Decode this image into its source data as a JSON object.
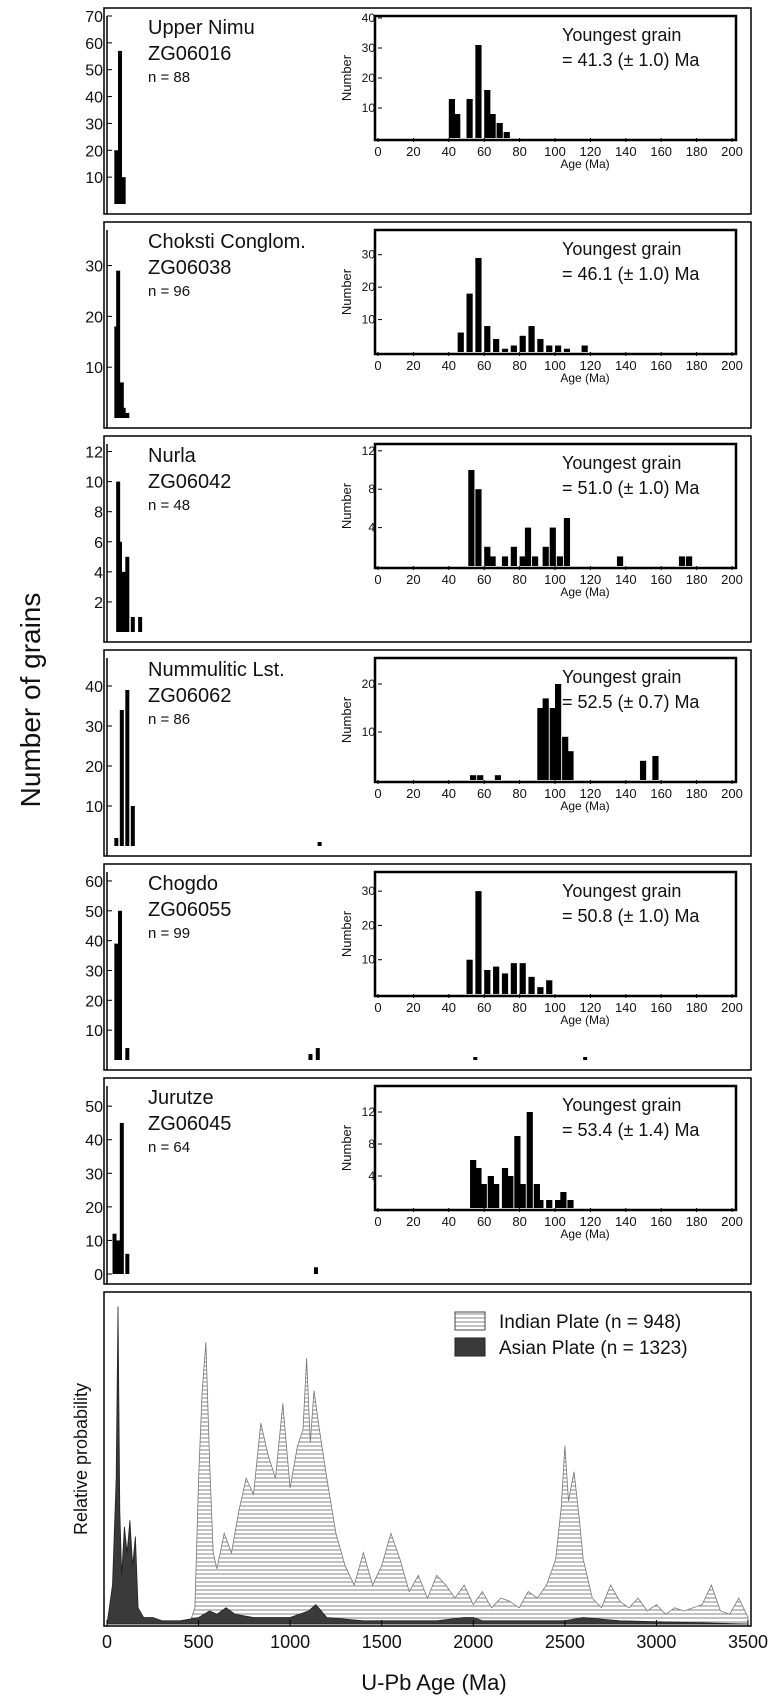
{
  "figure": {
    "ylabel": "Number of grains",
    "xlabel": "U-Pb Age (Ma)"
  },
  "chart_data": [
    {
      "type": "bar",
      "name": "Upper Nimu",
      "sample": "ZG06016",
      "n_label": "n = 88",
      "ylim": [
        0,
        70
      ],
      "yticks": [
        10,
        20,
        30,
        40,
        50,
        60,
        70
      ],
      "xlim": [
        0,
        3500
      ],
      "bars": [
        [
          40,
          20
        ],
        [
          60,
          57
        ],
        [
          80,
          10
        ]
      ],
      "inset": {
        "ylabel": "Number",
        "xlabel": "Age (Ma)",
        "ylim": [
          0,
          40
        ],
        "yticks": [
          10,
          20,
          30,
          40
        ],
        "xlim": [
          0,
          200
        ],
        "xticks": [
          0,
          20,
          40,
          60,
          80,
          100,
          120,
          140,
          160,
          180,
          200
        ],
        "annotation": [
          "Youngest grain",
          "= 41.3 (± 1.0) Ma"
        ],
        "bars": [
          [
            40,
            13
          ],
          [
            43,
            8
          ],
          [
            50,
            13
          ],
          [
            55,
            31
          ],
          [
            60,
            16
          ],
          [
            63,
            8
          ],
          [
            67,
            5
          ],
          [
            71,
            2
          ]
        ]
      }
    },
    {
      "type": "bar",
      "name": "Choksti Conglom.",
      "sample": "ZG06038",
      "n_label": "n = 96",
      "ylim": [
        0,
        37
      ],
      "yticks": [
        10,
        20,
        30
      ],
      "xlim": [
        0,
        3500
      ],
      "bars": [
        [
          40,
          18
        ],
        [
          50,
          29
        ],
        [
          60,
          5
        ],
        [
          70,
          7
        ],
        [
          80,
          2
        ],
        [
          100,
          1
        ]
      ],
      "inset": {
        "ylabel": "Number",
        "xlabel": "Age (Ma)",
        "ylim": [
          0,
          37
        ],
        "yticks": [
          10,
          20,
          30
        ],
        "xlim": [
          0,
          200
        ],
        "xticks": [
          0,
          20,
          40,
          60,
          80,
          100,
          120,
          140,
          160,
          180,
          200
        ],
        "annotation": [
          "Youngest grain",
          "= 46.1 (± 1.0) Ma"
        ],
        "bars": [
          [
            45,
            6
          ],
          [
            50,
            18
          ],
          [
            55,
            29
          ],
          [
            60,
            8
          ],
          [
            65,
            4
          ],
          [
            70,
            1
          ],
          [
            75,
            2
          ],
          [
            80,
            5
          ],
          [
            85,
            8
          ],
          [
            90,
            4
          ],
          [
            95,
            2
          ],
          [
            100,
            2
          ],
          [
            105,
            1
          ],
          [
            115,
            2
          ]
        ]
      }
    },
    {
      "type": "bar",
      "name": "Nurla",
      "sample": "ZG06042",
      "n_label": "n = 48",
      "ylim": [
        0,
        12.5
      ],
      "yticks": [
        2,
        4,
        6,
        8,
        10,
        12
      ],
      "xlim": [
        0,
        3500
      ],
      "bars": [
        [
          50,
          10
        ],
        [
          60,
          6
        ],
        [
          80,
          4
        ],
        [
          100,
          5
        ],
        [
          130,
          1
        ],
        [
          170,
          1
        ]
      ],
      "inset": {
        "ylabel": "Number",
        "xlabel": "Age (Ma)",
        "ylim": [
          0,
          12.5
        ],
        "yticks": [
          4,
          8,
          12
        ],
        "xlim": [
          0,
          200
        ],
        "xticks": [
          0,
          20,
          40,
          60,
          80,
          100,
          120,
          140,
          160,
          180,
          200
        ],
        "annotation": [
          "Youngest grain",
          "= 51.0 (± 1.0) Ma"
        ],
        "bars": [
          [
            51,
            10
          ],
          [
            55,
            8
          ],
          [
            60,
            2
          ],
          [
            63,
            1
          ],
          [
            70,
            1
          ],
          [
            75,
            2
          ],
          [
            80,
            1
          ],
          [
            83,
            4
          ],
          [
            87,
            1
          ],
          [
            93,
            2
          ],
          [
            97,
            4
          ],
          [
            101,
            1
          ],
          [
            105,
            5
          ],
          [
            135,
            1
          ],
          [
            170,
            1
          ],
          [
            174,
            1
          ]
        ]
      }
    },
    {
      "type": "bar",
      "name": "Nummulitic Lst.",
      "sample": "ZG06062",
      "n_label": "n = 86",
      "ylim": [
        0,
        47
      ],
      "yticks": [
        10,
        20,
        30,
        40
      ],
      "xlim": [
        0,
        3500
      ],
      "bars": [
        [
          40,
          2
        ],
        [
          70,
          34
        ],
        [
          100,
          39
        ],
        [
          130,
          10
        ],
        [
          1150,
          1
        ]
      ],
      "inset": {
        "ylabel": "Number",
        "xlabel": "Age (Ma)",
        "ylim": [
          0,
          25
        ],
        "yticks": [
          10,
          20
        ],
        "xlim": [
          0,
          200
        ],
        "xticks": [
          0,
          20,
          40,
          60,
          80,
          100,
          120,
          140,
          160,
          180,
          200
        ],
        "annotation": [
          "Youngest grain",
          "= 52.5 (± 0.7) Ma"
        ],
        "bars": [
          [
            52,
            1
          ],
          [
            56,
            1
          ],
          [
            66,
            1
          ],
          [
            90,
            15
          ],
          [
            93,
            17
          ],
          [
            97,
            15
          ],
          [
            100,
            20
          ],
          [
            104,
            9
          ],
          [
            107,
            6
          ],
          [
            148,
            4
          ],
          [
            155,
            5
          ]
        ]
      }
    },
    {
      "type": "bar",
      "name": "Chogdo",
      "sample": "ZG06055",
      "n_label": "n = 99",
      "ylim": [
        0,
        63
      ],
      "yticks": [
        10,
        20,
        30,
        40,
        50,
        60
      ],
      "xlim": [
        0,
        3500
      ],
      "bars": [
        [
          40,
          39
        ],
        [
          60,
          50
        ],
        [
          100,
          4
        ],
        [
          1100,
          2
        ],
        [
          1140,
          4
        ],
        [
          2000,
          1
        ],
        [
          2600,
          1
        ]
      ],
      "inset": {
        "ylabel": "Number",
        "xlabel": "Age (Ma)",
        "ylim": [
          0,
          35
        ],
        "yticks": [
          10,
          20,
          30
        ],
        "xlim": [
          0,
          200
        ],
        "xticks": [
          0,
          20,
          40,
          60,
          80,
          100,
          120,
          140,
          160,
          180,
          200
        ],
        "annotation": [
          "Youngest grain",
          "= 50.8 (± 1.0) Ma"
        ],
        "bars": [
          [
            50,
            10
          ],
          [
            55,
            30
          ],
          [
            60,
            7
          ],
          [
            65,
            8
          ],
          [
            70,
            6
          ],
          [
            75,
            9
          ],
          [
            80,
            9
          ],
          [
            85,
            5
          ],
          [
            90,
            2
          ],
          [
            95,
            4
          ]
        ]
      }
    },
    {
      "type": "bar",
      "name": "Jurutze",
      "sample": "ZG06045",
      "n_label": "n = 64",
      "ylim": [
        0,
        56
      ],
      "yticks": [
        0,
        10,
        20,
        30,
        40,
        50
      ],
      "xlim": [
        0,
        3500
      ],
      "bars": [
        [
          30,
          12
        ],
        [
          50,
          10
        ],
        [
          70,
          45
        ],
        [
          100,
          6
        ],
        [
          1130,
          2
        ]
      ],
      "inset": {
        "ylabel": "Number",
        "xlabel": "Age (Ma)",
        "ylim": [
          0,
          15
        ],
        "yticks": [
          4,
          8,
          12
        ],
        "xlim": [
          0,
          200
        ],
        "xticks": [
          0,
          20,
          40,
          60,
          80,
          100,
          120,
          140,
          160,
          180,
          200
        ],
        "annotation": [
          "Youngest grain",
          "= 53.4 (± 1.4) Ma"
        ],
        "bars": [
          [
            52,
            6
          ],
          [
            55,
            5
          ],
          [
            58,
            3
          ],
          [
            62,
            4
          ],
          [
            65,
            3
          ],
          [
            70,
            5
          ],
          [
            73,
            4
          ],
          [
            77,
            9
          ],
          [
            80,
            3
          ],
          [
            84,
            12
          ],
          [
            88,
            3
          ],
          [
            90,
            1
          ],
          [
            95,
            1
          ],
          [
            100,
            1
          ],
          [
            103,
            2
          ],
          [
            107,
            1
          ]
        ]
      }
    },
    {
      "type": "area",
      "ylabel": "Relative probability",
      "xlim": [
        0,
        3500
      ],
      "xticks": [
        0,
        500,
        1000,
        1500,
        2000,
        2500,
        3000,
        3500
      ],
      "ylim": [
        0,
        1
      ],
      "series": [
        {
          "name": "Indian Plate (n = 948)",
          "fill": "hatch",
          "x": [
            0,
            450,
            480,
            500,
            520,
            540,
            560,
            580,
            600,
            640,
            680,
            720,
            760,
            800,
            840,
            880,
            920,
            960,
            1000,
            1040,
            1070,
            1090,
            1110,
            1130,
            1160,
            1200,
            1250,
            1300,
            1350,
            1400,
            1450,
            1500,
            1550,
            1600,
            1650,
            1700,
            1750,
            1800,
            1850,
            1900,
            1950,
            2000,
            2050,
            2100,
            2150,
            2200,
            2250,
            2300,
            2350,
            2400,
            2450,
            2480,
            2500,
            2520,
            2550,
            2580,
            2600,
            2650,
            2700,
            2750,
            2800,
            2850,
            2900,
            2950,
            3000,
            3050,
            3100,
            3150,
            3200,
            3250,
            3300,
            3350,
            3400,
            3450,
            3500
          ],
          "y": [
            0,
            0,
            0.05,
            0.45,
            0.72,
            0.87,
            0.5,
            0.22,
            0.17,
            0.28,
            0.22,
            0.35,
            0.45,
            0.4,
            0.62,
            0.52,
            0.45,
            0.68,
            0.42,
            0.55,
            0.6,
            0.82,
            0.56,
            0.72,
            0.6,
            0.45,
            0.28,
            0.18,
            0.12,
            0.22,
            0.12,
            0.18,
            0.28,
            0.2,
            0.1,
            0.15,
            0.08,
            0.15,
            0.12,
            0.08,
            0.12,
            0.06,
            0.1,
            0.05,
            0.08,
            0.07,
            0.05,
            0.1,
            0.08,
            0.12,
            0.2,
            0.36,
            0.55,
            0.38,
            0.47,
            0.32,
            0.2,
            0.08,
            0.05,
            0.12,
            0.07,
            0.05,
            0.08,
            0.04,
            0.06,
            0.03,
            0.05,
            0.04,
            0.05,
            0.06,
            0.12,
            0.04,
            0.03,
            0.08,
            0.02
          ]
        },
        {
          "name": "Asian Plate (n = 1323)",
          "fill": "solid",
          "x": [
            0,
            30,
            50,
            60,
            70,
            80,
            95,
            110,
            125,
            140,
            155,
            170,
            200,
            250,
            300,
            400,
            500,
            560,
            600,
            650,
            700,
            800,
            900,
            1000,
            1100,
            1140,
            1200,
            1400,
            1600,
            1800,
            1950,
            2000,
            2050,
            2200,
            2500,
            2600,
            2800,
            3500
          ],
          "y": [
            0,
            0.12,
            0.45,
            0.98,
            0.35,
            0.15,
            0.3,
            0.22,
            0.32,
            0.18,
            0.27,
            0.05,
            0.02,
            0.02,
            0.01,
            0.01,
            0.02,
            0.04,
            0.03,
            0.05,
            0.03,
            0.02,
            0.02,
            0.02,
            0.04,
            0.06,
            0.02,
            0.01,
            0.01,
            0.01,
            0.02,
            0.02,
            0.01,
            0.01,
            0.01,
            0.02,
            0.01,
            0
          ]
        }
      ]
    }
  ]
}
